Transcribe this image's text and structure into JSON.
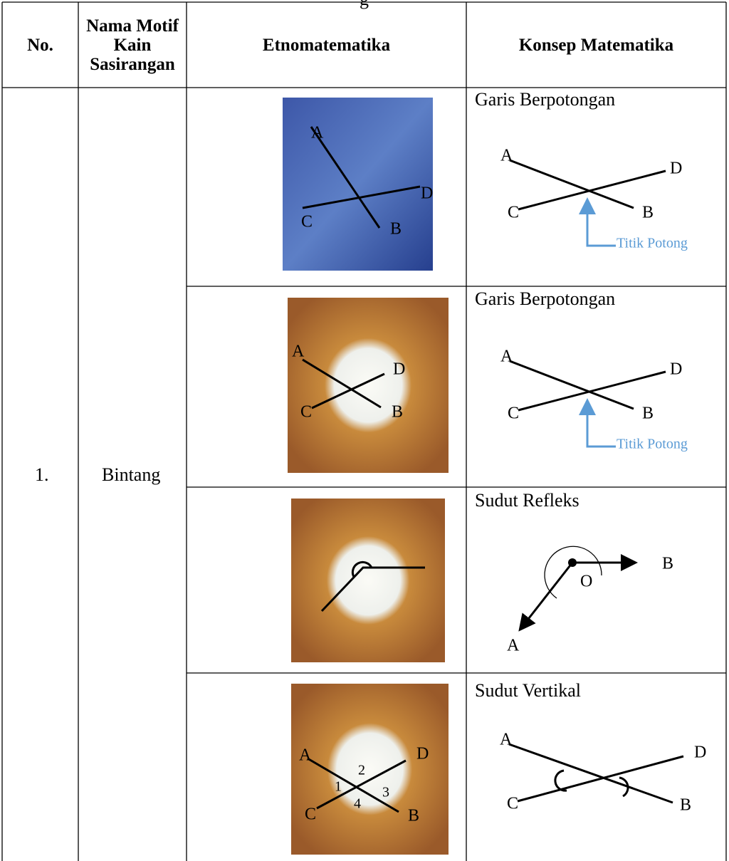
{
  "caption_fragment": "g",
  "table": {
    "headers": [
      "No.",
      "Nama Motif Kain Sasirangan",
      "Etnomatematika",
      "Konsep Matematika"
    ],
    "number": "1.",
    "motif": "Bintang",
    "rows": [
      {
        "photo_labels": [
          "A",
          "B",
          "C",
          "D"
        ],
        "concept": "Garis Berpotongan",
        "diagram_labels": [
          "A",
          "B",
          "C",
          "D",
          "Titik Potong"
        ]
      },
      {
        "photo_labels": [
          "A",
          "B",
          "C",
          "D"
        ],
        "concept": "Garis Berpotongan",
        "diagram_labels": [
          "A",
          "B",
          "C",
          "D",
          "Titik Potong"
        ]
      },
      {
        "photo_labels": [],
        "concept": "Sudut Refleks",
        "diagram_labels": [
          "O",
          "A",
          "B"
        ]
      },
      {
        "photo_labels": [
          "A",
          "B",
          "C",
          "D",
          "1",
          "2",
          "3",
          "4"
        ],
        "concept": "Sudut Vertikal",
        "diagram_labels": [
          "A",
          "B",
          "C",
          "D"
        ]
      }
    ]
  }
}
